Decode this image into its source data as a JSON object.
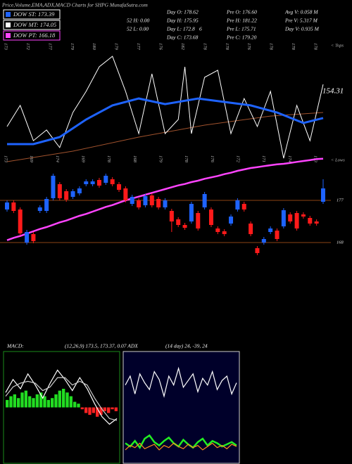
{
  "header": {
    "title": "Price,Volume,EMA,ADX,MACD Charts for SHPG MunafaSutra.com",
    "legend": [
      {
        "label": "DOW ST: 173.39",
        "color": "#1e63ff"
      },
      {
        "label": "DOW MT: 174.05",
        "color": "#ffffff"
      },
      {
        "label": "DOW PT: 166.18",
        "color": "#ff44ff"
      }
    ],
    "info": [
      "Day O: 178.62",
      "Pre O: 176.60",
      "Avg V: 0.058 M",
      "52 H: 0.00",
      "Day H: 175.95",
      "Pre H: 181.22",
      "Pre V: 5.317 M",
      "52 L: 0.00",
      "Day L: 172.8",
      "6",
      "Pre L: 175.71",
      "Day V: 0.935 M",
      "Day C: 173.68",
      "Pre C: 179.20"
    ],
    "tops": "< Tops",
    "lows": "< Lows",
    "last_value": "154.31",
    "macd_label": "MACD:",
    "macd_text": "(12,26,9) 173.5, 173.37, 0.07 ADX",
    "adx_text": "(14 day) 24, -39, 24"
  },
  "chart_data": [
    {
      "type": "candlestick",
      "xlim": [
        0,
        48
      ],
      "ylim": [
        164.25,
        186.75
      ],
      "yticks": [
        168,
        177
      ],
      "up_color": "#1e63ff",
      "down_color": "#ff1a1a",
      "open": [
        175.05,
        176.55,
        175.05,
        168,
        169.8,
        174.75,
        174.75,
        177.45,
        180.45,
        178.95,
        177.75,
        178.5,
        180.45,
        180.45,
        181.35,
        180.75,
        181.5,
        180.45,
        179.55,
        176.25,
        177,
        175.95,
        178.05,
        177.3,
        175.5,
        174.75,
        172.95,
        171.75,
        172.5,
        174.3,
        175.5,
        175.05,
        171,
        170.4,
        172.05,
        175.05,
        176.25,
        172.05,
        166.8,
        168,
        170.25,
        170.55,
        171.45,
        174,
        174.3,
        174,
        173.25,
        172.5,
        176.7
      ],
      "high": [
        177,
        177,
        175.5,
        170.7,
        170.25,
        175.95,
        177.75,
        182.7,
        180.9,
        179.4,
        179.4,
        180,
        181.5,
        181.5,
        181.8,
        182.7,
        181.95,
        180.9,
        180,
        178.2,
        177.45,
        178.35,
        178.5,
        177.75,
        177.45,
        175.2,
        173.4,
        172.2,
        176.7,
        174.75,
        178.8,
        175.5,
        171.45,
        170.85,
        174,
        177.45,
        176.7,
        172.5,
        167.25,
        169.2,
        171.45,
        171,
        175.35,
        174.45,
        174.75,
        174.45,
        173.7,
        172.95,
        181.5
      ],
      "low": [
        174.6,
        174.3,
        169.5,
        167.55,
        167.85,
        174.3,
        174.3,
        177,
        177,
        176.7,
        177.3,
        178.05,
        180,
        180,
        179.7,
        180.3,
        180,
        178.8,
        176.55,
        175.8,
        175.05,
        175.5,
        175.5,
        175.05,
        175.05,
        170.25,
        171.3,
        170.7,
        172.05,
        170.55,
        175.05,
        171.3,
        169.8,
        169.35,
        171.6,
        174.6,
        174.6,
        169.35,
        165.3,
        167.55,
        169.8,
        168.3,
        171,
        172.05,
        170.55,
        173.1,
        171.6,
        171.6,
        176.25
      ],
      "close": [
        176.55,
        174.75,
        169.95,
        170.25,
        168.3,
        175.5,
        177.3,
        182.25,
        177.45,
        177.15,
        178.95,
        179.55,
        181.05,
        181.05,
        180.15,
        182.25,
        180.45,
        179.25,
        177,
        177.75,
        175.5,
        177.9,
        175.95,
        175.5,
        177,
        172.5,
        171.75,
        171.15,
        176.25,
        171,
        178.35,
        171.75,
        170.25,
        169.8,
        173.55,
        177,
        175.05,
        169.8,
        165.75,
        168.75,
        171,
        168.75,
        174.9,
        172.5,
        171,
        173.55,
        172.05,
        172.05,
        179.55
      ],
      "ma": {
        "color": "#ff44ff",
        "values": [
          168.5,
          169.0,
          169.4,
          169.9,
          170.4,
          170.9,
          171.3,
          171.8,
          172.3,
          172.7,
          173.2,
          173.7,
          174.1,
          174.6,
          175.1,
          175.6,
          176.0,
          176.5,
          177.0,
          177.4,
          177.8,
          178.2,
          178.6,
          179.0,
          179.4,
          179.8,
          180.2,
          180.5,
          180.9,
          181.2,
          181.6,
          181.9,
          182.2,
          182.6,
          182.9,
          183.3,
          183.6,
          183.9,
          184.1,
          184.3,
          184.5,
          184.7,
          184.8,
          185.0,
          185.2,
          185.4,
          185.6,
          185.8,
          185.9
        ]
      },
      "overlay_ylim": [
        0,
        100
      ],
      "overlay": [
        {
          "color": "#a0522d",
          "width": 1,
          "x": [
            0,
            10,
            20,
            30,
            40,
            48
          ],
          "values": [
            0,
            8.8,
            20.6,
            30.6,
            38.2,
            41.2
          ]
        },
        {
          "color": "#ffffff",
          "width": 1,
          "x": [
            0,
            2,
            4,
            6,
            8,
            10,
            12,
            14,
            16,
            18,
            20,
            22,
            24,
            26,
            27,
            28,
            30,
            32,
            34,
            36,
            38,
            40,
            42,
            44,
            46,
            48
          ],
          "values": [
            29.4,
            47.1,
            17.6,
            26.5,
            11.8,
            41.2,
            58.8,
            79.4,
            88.2,
            58.8,
            23.5,
            73.5,
            23.5,
            35.3,
            79.4,
            23.5,
            70.6,
            76.5,
            23.5,
            52.9,
            29.4,
            58.8,
            2.9,
            47.1,
            17.6,
            64.7
          ]
        },
        {
          "color": "#1e63ff",
          "width": 3,
          "x": [
            0,
            4,
            8,
            12,
            16,
            20,
            24,
            29,
            33,
            37,
            41,
            45,
            48
          ],
          "values": [
            14.7,
            14.7,
            20.6,
            35.3,
            47.1,
            52.9,
            48.2,
            52.9,
            50,
            47.1,
            41.2,
            32.4,
            36.5
          ]
        }
      ],
      "top_labels": [
        "173",
        "172",
        "177",
        "179",
        "180",
        "179",
        "177",
        "176",
        "182",
        "178",
        "178",
        "176",
        "178",
        "178",
        "178"
      ],
      "bottom_labels": [
        "173",
        "169",
        "174",
        "169",
        "178",
        "168",
        "179",
        "178",
        "176",
        "172",
        "171",
        "174",
        "173"
      ]
    },
    {
      "type": "macd",
      "ylim": [
        -3,
        3
      ],
      "histogram": [
        0.4,
        0.6,
        0.7,
        0.5,
        0.8,
        0.9,
        0.6,
        0.5,
        0.7,
        0.8,
        0.6,
        0.4,
        0.5,
        0.7,
        0.9,
        1.0,
        0.8,
        0.6,
        0.3,
        0.2,
        -0.1,
        -0.3,
        -0.4,
        -0.3,
        -0.5,
        -0.4,
        -0.2,
        -0.3,
        -0.1,
        -0.2
      ],
      "positive_color": "#22dd22",
      "negative_color": "#ff2222",
      "series": [
        {
          "color": "#ffffff",
          "values": [
            0.8,
            1.5,
            1.0,
            1.8,
            1.2,
            0.5,
            1.3,
            2.0,
            1.5,
            0.9,
            1.6,
            1.0,
            0.2,
            -0.5,
            -0.9,
            -0.6
          ]
        },
        {
          "color": "#cccccc",
          "values": [
            0.6,
            1.1,
            1.3,
            1.4,
            1.3,
            0.9,
            1.1,
            1.6,
            1.6,
            1.2,
            1.4,
            1.2,
            0.5,
            -0.1,
            -0.6,
            -0.7
          ]
        }
      ]
    },
    {
      "type": "adx",
      "ylim": [
        0,
        100
      ],
      "series": [
        {
          "color": "#ffffff",
          "values": [
            70,
            78,
            62,
            80,
            72,
            66,
            82,
            75,
            60,
            78,
            70,
            85,
            68,
            74,
            80,
            64,
            76,
            70,
            82,
            66,
            74,
            78,
            62,
            72
          ]
        },
        {
          "color": "#22ee22",
          "values": [
            18,
            15,
            20,
            14,
            22,
            25,
            19,
            16,
            20,
            23,
            18,
            15,
            21,
            17,
            14,
            19,
            22,
            16,
            20,
            18,
            15,
            17,
            19,
            16
          ]
        },
        {
          "color": "#ff8c1a",
          "values": [
            12,
            16,
            14,
            18,
            13,
            15,
            17,
            12,
            16,
            14,
            18,
            15,
            13,
            17,
            14,
            16,
            12,
            15,
            18,
            14,
            16,
            13,
            17,
            15
          ]
        }
      ]
    }
  ]
}
